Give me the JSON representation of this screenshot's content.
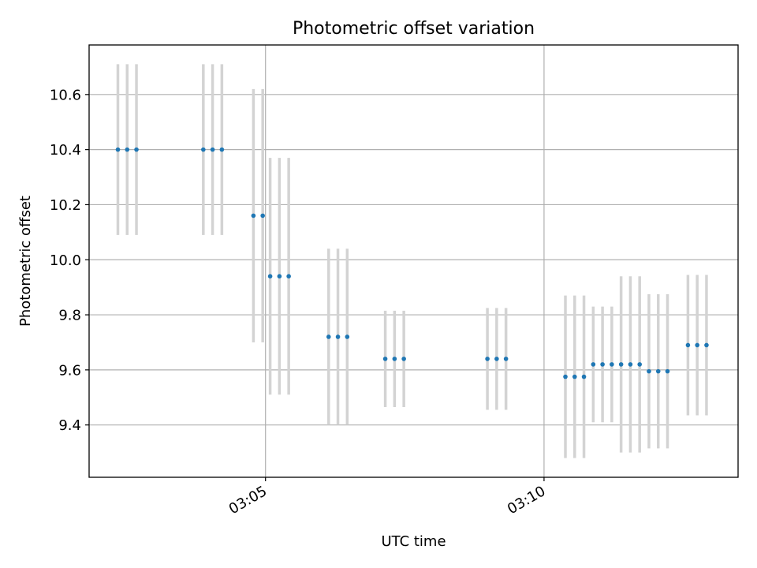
{
  "chart_data": {
    "type": "scatter",
    "title": "Photometric offset variation",
    "xlabel": "UTC time",
    "ylabel": "Photometric offset",
    "x_unit": "UTC time (HH:MM)",
    "xlim": [
      "03:01:50",
      "03:13:29"
    ],
    "ylim": [
      9.21,
      10.78
    ],
    "x_ticks": [
      "03:05",
      "03:10"
    ],
    "y_ticks": [
      "9.4",
      "9.6",
      "9.8",
      "10.0",
      "10.2",
      "10.4",
      "10.6"
    ],
    "grid": true,
    "colors": {
      "marker": "#1f77b4",
      "errorbar": "#d3d3d3",
      "grid": "#b0b0b0",
      "axes": "#000000"
    },
    "series": [
      {
        "points": [
          {
            "x": "03:02:21",
            "y": 10.4,
            "err": 0.31
          },
          {
            "x": "03:02:31",
            "y": 10.4,
            "err": 0.31
          },
          {
            "x": "03:02:41",
            "y": 10.4,
            "err": 0.31
          },
          {
            "x": "03:03:53",
            "y": 10.4,
            "err": 0.31
          },
          {
            "x": "03:04:03",
            "y": 10.4,
            "err": 0.31
          },
          {
            "x": "03:04:13",
            "y": 10.4,
            "err": 0.31
          },
          {
            "x": "03:04:47",
            "y": 10.16,
            "err": 0.46
          },
          {
            "x": "03:04:57",
            "y": 10.16,
            "err": 0.46
          },
          {
            "x": "03:05:05",
            "y": 9.94,
            "err": 0.43
          },
          {
            "x": "03:05:15",
            "y": 9.94,
            "err": 0.43
          },
          {
            "x": "03:05:25",
            "y": 9.94,
            "err": 0.43
          },
          {
            "x": "03:06:08",
            "y": 9.72,
            "err": 0.32
          },
          {
            "x": "03:06:18",
            "y": 9.72,
            "err": 0.32
          },
          {
            "x": "03:06:28",
            "y": 9.72,
            "err": 0.32
          },
          {
            "x": "03:07:09",
            "y": 9.64,
            "err": 0.175
          },
          {
            "x": "03:07:19",
            "y": 9.64,
            "err": 0.175
          },
          {
            "x": "03:07:29",
            "y": 9.64,
            "err": 0.175
          },
          {
            "x": "03:08:59",
            "y": 9.64,
            "err": 0.185
          },
          {
            "x": "03:09:09",
            "y": 9.64,
            "err": 0.185
          },
          {
            "x": "03:09:19",
            "y": 9.64,
            "err": 0.185
          },
          {
            "x": "03:10:23",
            "y": 9.575,
            "err": 0.295
          },
          {
            "x": "03:10:33",
            "y": 9.575,
            "err": 0.295
          },
          {
            "x": "03:10:43",
            "y": 9.575,
            "err": 0.295
          },
          {
            "x": "03:10:53",
            "y": 9.62,
            "err": 0.21
          },
          {
            "x": "03:11:03",
            "y": 9.62,
            "err": 0.21
          },
          {
            "x": "03:11:13",
            "y": 9.62,
            "err": 0.21
          },
          {
            "x": "03:11:23",
            "y": 9.62,
            "err": 0.32
          },
          {
            "x": "03:11:33",
            "y": 9.62,
            "err": 0.32
          },
          {
            "x": "03:11:43",
            "y": 9.62,
            "err": 0.32
          },
          {
            "x": "03:11:53",
            "y": 9.595,
            "err": 0.28
          },
          {
            "x": "03:12:03",
            "y": 9.595,
            "err": 0.28
          },
          {
            "x": "03:12:13",
            "y": 9.595,
            "err": 0.28
          },
          {
            "x": "03:12:35",
            "y": 9.69,
            "err": 0.255
          },
          {
            "x": "03:12:45",
            "y": 9.69,
            "err": 0.255
          },
          {
            "x": "03:12:55",
            "y": 9.69,
            "err": 0.255
          }
        ]
      }
    ]
  }
}
